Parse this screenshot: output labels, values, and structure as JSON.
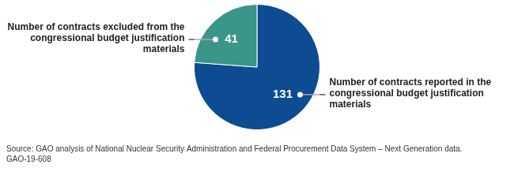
{
  "chart_data": {
    "type": "pie",
    "categories": [
      "Number of contracts reported in the congressional budget justification materials",
      "Number of contracts excluded from the congressional budget justification materials"
    ],
    "values": [
      131,
      41
    ],
    "colors": [
      "#0d4c92",
      "#3a9688"
    ],
    "data_labels": true,
    "annotations": [
      "Source: GAO analysis of National Nuclear Security Administration and Federal Procurement Data System – Next Generation data.",
      "GAO-19-608"
    ]
  }
}
